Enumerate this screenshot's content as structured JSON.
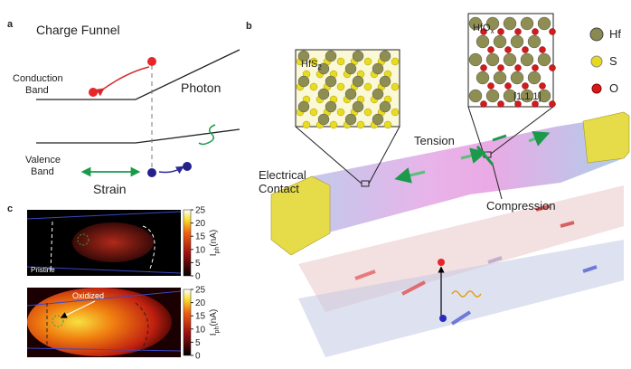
{
  "panel_a": {
    "label": "a",
    "title": "Charge Funnel",
    "conduction": [
      "Conduction",
      "Band"
    ],
    "photon": "Photon",
    "valence": [
      "Valence",
      "Band"
    ],
    "strain": "Strain"
  },
  "panel_b": {
    "label": "b",
    "inset_left": {
      "main": "HfS",
      "sub": "2"
    },
    "inset_right": {
      "main": "HfO",
      "sub": "x",
      "direction": "[1,1,1]"
    },
    "legend": [
      "Hf",
      "S",
      "O"
    ],
    "tension": "Tension",
    "contact": [
      "Electrical",
      "Contact"
    ],
    "compression": "Compression"
  },
  "panel_c": {
    "label": "c",
    "maps": [
      "Pristine",
      "Oxidized"
    ],
    "colorbars": [
      {
        "lim": [
          0,
          25
        ],
        "ticks": [
          0,
          5,
          10,
          15,
          20,
          25
        ],
        "label_main": "I",
        "label_sub": "ph",
        "label_unit": "(nA)"
      },
      {
        "lim": [
          0,
          25
        ],
        "ticks": [
          0,
          5,
          10,
          15,
          20,
          25
        ],
        "label_main": "I",
        "label_sub": "ph",
        "label_unit": "(nA)"
      }
    ]
  }
}
